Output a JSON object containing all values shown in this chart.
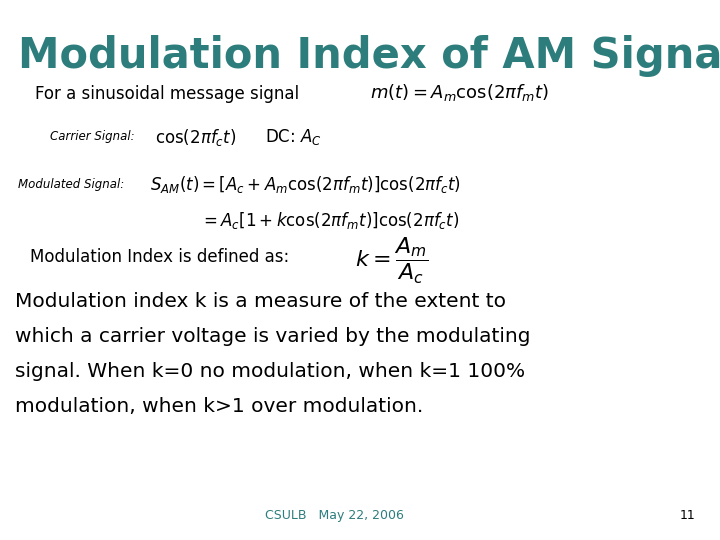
{
  "title": "Modulation Index of AM Signal",
  "title_color": "#2E7D7D",
  "title_fontsize": 32,
  "bg_color": "#ffffff",
  "line1_text": "For a sinusoidal message signal",
  "line1_formula": "$m(t) = A_m \\cos(2\\pi f_m t)$",
  "carrier_label": "Carrier Signal:",
  "carrier_formula": "$\\cos(2\\pi f_c t)$",
  "carrier_dc": "DC: $A_C$",
  "mod_label": "Modulated Signal:",
  "mod_formula1": "$S_{AM}(t) = [A_c + A_m \\cos(2\\pi f_m t)]\\cos(2\\pi f_c t)$",
  "mod_formula2": "$= A_c[1 + k\\cos(2\\pi f_m t)]\\cos(2\\pi f_c t)$",
  "index_label": "Modulation Index is defined as:",
  "index_formula": "$k = \\dfrac{A_m}{A_c}$",
  "body_text_line1": "Modulation index k is a measure of the extent to",
  "body_text_line2": "which a carrier voltage is varied by the modulating",
  "body_text_line3": "signal. When k=0 no modulation, when k=1 100%",
  "body_text_line4": "modulation, when k>1 over modulation.",
  "footer_text": "CSULB   May 22, 2006",
  "footer_page": "11",
  "footer_color": "#2E7D7D"
}
